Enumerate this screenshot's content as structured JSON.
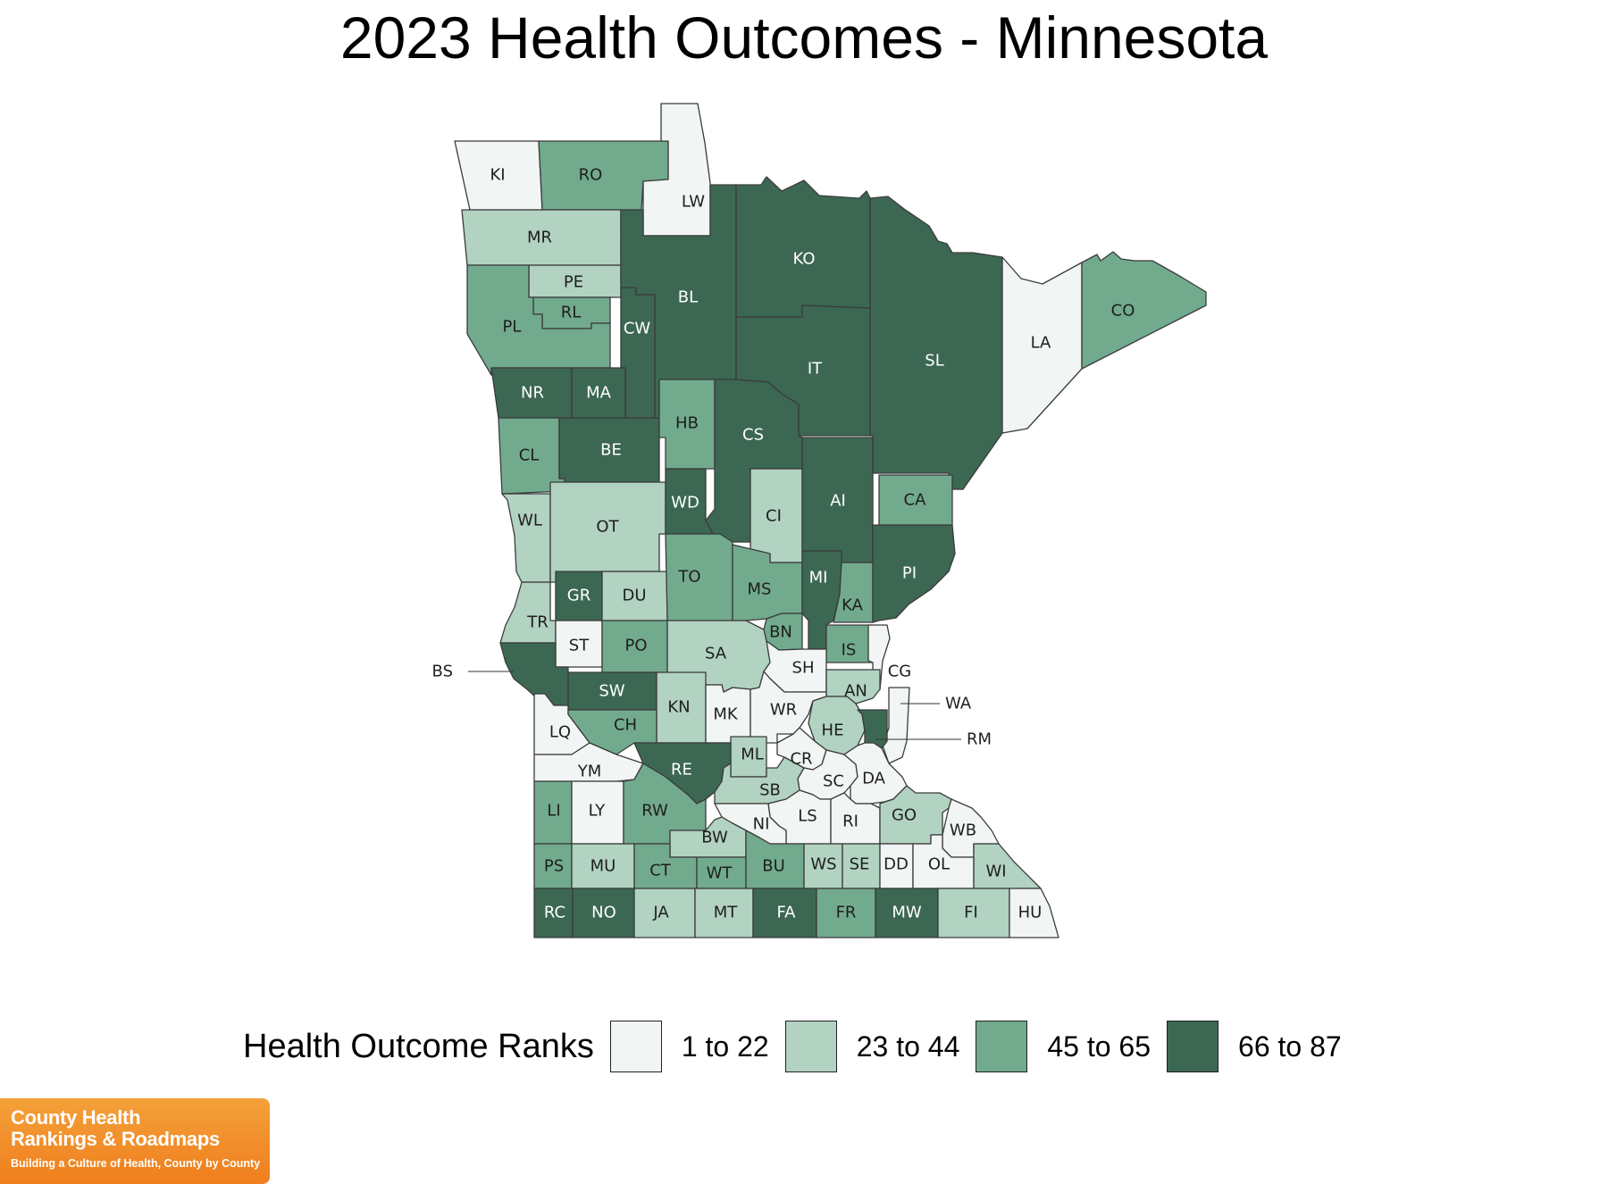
{
  "title": "2023 Health Outcomes - Minnesota",
  "legend": {
    "title": "Health Outcome Ranks",
    "classes": [
      {
        "label": "1 to 22",
        "color": "#f1f5f3"
      },
      {
        "label": "23 to 44",
        "color": "#b2d2c2"
      },
      {
        "label": "45 to 65",
        "color": "#72aa8e"
      },
      {
        "label": "66 to 87",
        "color": "#3c6853"
      }
    ]
  },
  "counties": [
    {
      "abbr": "KI",
      "class": 0
    },
    {
      "abbr": "RO",
      "class": 2
    },
    {
      "abbr": "LW",
      "class": 0
    },
    {
      "abbr": "MR",
      "class": 1
    },
    {
      "abbr": "PE",
      "class": 1
    },
    {
      "abbr": "RL",
      "class": 2
    },
    {
      "abbr": "PL",
      "class": 2
    },
    {
      "abbr": "CW",
      "class": 3
    },
    {
      "abbr": "BL",
      "class": 3
    },
    {
      "abbr": "KO",
      "class": 3
    },
    {
      "abbr": "IT",
      "class": 3
    },
    {
      "abbr": "SL",
      "class": 3
    },
    {
      "abbr": "LA",
      "class": 0
    },
    {
      "abbr": "CO",
      "class": 2
    },
    {
      "abbr": "NR",
      "class": 3
    },
    {
      "abbr": "MA",
      "class": 3
    },
    {
      "abbr": "CL",
      "class": 2
    },
    {
      "abbr": "BE",
      "class": 3
    },
    {
      "abbr": "HB",
      "class": 2
    },
    {
      "abbr": "CS",
      "class": 3
    },
    {
      "abbr": "WL",
      "class": 1
    },
    {
      "abbr": "OT",
      "class": 1
    },
    {
      "abbr": "WD",
      "class": 3
    },
    {
      "abbr": "CI",
      "class": 1
    },
    {
      "abbr": "AI",
      "class": 3
    },
    {
      "abbr": "CA",
      "class": 2
    },
    {
      "abbr": "GR",
      "class": 3
    },
    {
      "abbr": "DU",
      "class": 1
    },
    {
      "abbr": "TO",
      "class": 2
    },
    {
      "abbr": "MS",
      "class": 2
    },
    {
      "abbr": "MI",
      "class": 3
    },
    {
      "abbr": "KA",
      "class": 2
    },
    {
      "abbr": "PI",
      "class": 3
    },
    {
      "abbr": "TR",
      "class": 1
    },
    {
      "abbr": "ST",
      "class": 0
    },
    {
      "abbr": "PO",
      "class": 2
    },
    {
      "abbr": "BN",
      "class": 2
    },
    {
      "abbr": "IS",
      "class": 2
    },
    {
      "abbr": "SA",
      "class": 1
    },
    {
      "abbr": "SH",
      "class": 0
    },
    {
      "abbr": "CG",
      "class": 0
    },
    {
      "abbr": "BS",
      "class": 3
    },
    {
      "abbr": "SW",
      "class": 3
    },
    {
      "abbr": "AN",
      "class": 1
    },
    {
      "abbr": "KN",
      "class": 1
    },
    {
      "abbr": "MK",
      "class": 0
    },
    {
      "abbr": "WR",
      "class": 0
    },
    {
      "abbr": "WA",
      "class": 0
    },
    {
      "abbr": "LQ",
      "class": 0
    },
    {
      "abbr": "CH",
      "class": 2
    },
    {
      "abbr": "HE",
      "class": 1
    },
    {
      "abbr": "RM",
      "class": 3
    },
    {
      "abbr": "ML",
      "class": 1
    },
    {
      "abbr": "CR",
      "class": 0
    },
    {
      "abbr": "RE",
      "class": 3
    },
    {
      "abbr": "YM",
      "class": 0
    },
    {
      "abbr": "SC",
      "class": 0
    },
    {
      "abbr": "DA",
      "class": 0
    },
    {
      "abbr": "SB",
      "class": 1
    },
    {
      "abbr": "LI",
      "class": 2
    },
    {
      "abbr": "LY",
      "class": 0
    },
    {
      "abbr": "RW",
      "class": 2
    },
    {
      "abbr": "LS",
      "class": 0
    },
    {
      "abbr": "RI",
      "class": 0
    },
    {
      "abbr": "GO",
      "class": 1
    },
    {
      "abbr": "NI",
      "class": 0
    },
    {
      "abbr": "BW",
      "class": 1
    },
    {
      "abbr": "WB",
      "class": 0
    },
    {
      "abbr": "PS",
      "class": 2
    },
    {
      "abbr": "MU",
      "class": 1
    },
    {
      "abbr": "CT",
      "class": 2
    },
    {
      "abbr": "WT",
      "class": 2
    },
    {
      "abbr": "BU",
      "class": 2
    },
    {
      "abbr": "WS",
      "class": 1
    },
    {
      "abbr": "SE",
      "class": 1
    },
    {
      "abbr": "DD",
      "class": 0
    },
    {
      "abbr": "OL",
      "class": 0
    },
    {
      "abbr": "WI",
      "class": 1
    },
    {
      "abbr": "RC",
      "class": 3
    },
    {
      "abbr": "NO",
      "class": 3
    },
    {
      "abbr": "JA",
      "class": 1
    },
    {
      "abbr": "MT",
      "class": 1
    },
    {
      "abbr": "FA",
      "class": 3
    },
    {
      "abbr": "FR",
      "class": 2
    },
    {
      "abbr": "MW",
      "class": 3
    },
    {
      "abbr": "FI",
      "class": 1
    },
    {
      "abbr": "HU",
      "class": 0
    }
  ],
  "logo": {
    "line1": "County Health",
    "line2": "Rankings & Roadmaps",
    "tagline": "Building a Culture of Health, County by County"
  }
}
